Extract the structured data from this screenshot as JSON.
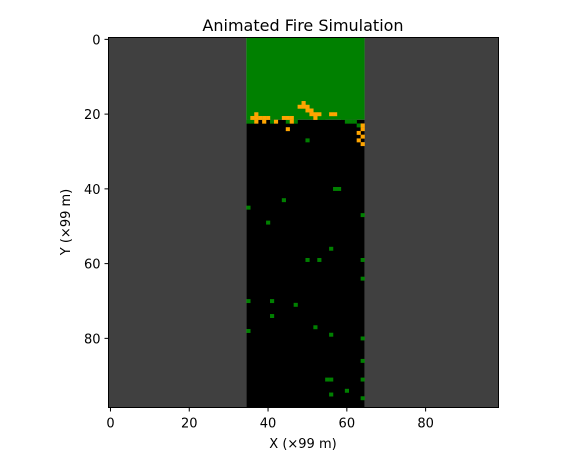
{
  "chart_data": {
    "type": "heatmap",
    "title": "Animated Fire Simulation",
    "xlabel": "X (×99 m)",
    "ylabel": "Y (×99 m)",
    "xlim": [
      0,
      99
    ],
    "ylim": [
      99,
      0
    ],
    "x_ticks": [
      0,
      20,
      40,
      60,
      80
    ],
    "y_ticks": [
      0,
      20,
      40,
      60,
      80
    ],
    "grid": false,
    "colors": {
      "out_of_bounds": "#404040",
      "unburned_fuel": "#008000",
      "burning": "#ffa500",
      "burned": "#000000"
    },
    "regions": [
      {
        "state": "out_of_bounds",
        "x": [
          0,
          35
        ],
        "y": [
          0,
          99
        ]
      },
      {
        "state": "out_of_bounds",
        "x": [
          65,
          99
        ],
        "y": [
          0,
          99
        ]
      },
      {
        "state": "unburned_fuel",
        "x": [
          35,
          65
        ],
        "y": [
          0,
          22
        ]
      },
      {
        "state": "burned",
        "x": [
          35,
          65
        ],
        "y": [
          22,
          99
        ]
      }
    ],
    "cells": [
      {
        "state": "unburned_fuel",
        "x": 35,
        "y": 22
      },
      {
        "state": "unburned_fuel",
        "x": 36,
        "y": 22
      },
      {
        "state": "unburned_fuel",
        "x": 41,
        "y": 22
      },
      {
        "state": "unburned_fuel",
        "x": 45,
        "y": 22
      },
      {
        "state": "unburned_fuel",
        "x": 47,
        "y": 22
      },
      {
        "state": "unburned_fuel",
        "x": 53,
        "y": 21
      },
      {
        "state": "unburned_fuel",
        "x": 54,
        "y": 21
      },
      {
        "state": "unburned_fuel",
        "x": 59,
        "y": 21
      },
      {
        "state": "unburned_fuel",
        "x": 60,
        "y": 22
      },
      {
        "state": "unburned_fuel",
        "x": 61,
        "y": 22
      },
      {
        "state": "unburned_fuel",
        "x": 62,
        "y": 22
      },
      {
        "state": "unburned_fuel",
        "x": 63,
        "y": 23
      },
      {
        "state": "burning",
        "x": 36,
        "y": 21
      },
      {
        "state": "burning",
        "x": 37,
        "y": 20
      },
      {
        "state": "burning",
        "x": 37,
        "y": 21
      },
      {
        "state": "burning",
        "x": 37,
        "y": 22
      },
      {
        "state": "burning",
        "x": 38,
        "y": 21
      },
      {
        "state": "burning",
        "x": 39,
        "y": 21
      },
      {
        "state": "burning",
        "x": 39,
        "y": 22
      },
      {
        "state": "burning",
        "x": 40,
        "y": 21
      },
      {
        "state": "burning",
        "x": 42,
        "y": 22
      },
      {
        "state": "burning",
        "x": 44,
        "y": 21
      },
      {
        "state": "burning",
        "x": 45,
        "y": 21
      },
      {
        "state": "burning",
        "x": 46,
        "y": 21
      },
      {
        "state": "burning",
        "x": 46,
        "y": 22
      },
      {
        "state": "burning",
        "x": 45,
        "y": 24
      },
      {
        "state": "burning",
        "x": 48,
        "y": 18
      },
      {
        "state": "burning",
        "x": 49,
        "y": 17
      },
      {
        "state": "burning",
        "x": 49,
        "y": 18
      },
      {
        "state": "burning",
        "x": 50,
        "y": 18
      },
      {
        "state": "burning",
        "x": 50,
        "y": 19
      },
      {
        "state": "burning",
        "x": 51,
        "y": 19
      },
      {
        "state": "burning",
        "x": 51,
        "y": 20
      },
      {
        "state": "burning",
        "x": 52,
        "y": 20
      },
      {
        "state": "burning",
        "x": 52,
        "y": 21
      },
      {
        "state": "burning",
        "x": 53,
        "y": 20
      },
      {
        "state": "burning",
        "x": 56,
        "y": 20
      },
      {
        "state": "burning",
        "x": 57,
        "y": 20
      },
      {
        "state": "burning",
        "x": 64,
        "y": 23
      },
      {
        "state": "burning",
        "x": 64,
        "y": 24
      },
      {
        "state": "burning",
        "x": 63,
        "y": 25
      },
      {
        "state": "burning",
        "x": 64,
        "y": 26
      },
      {
        "state": "burning",
        "x": 63,
        "y": 27
      },
      {
        "state": "burning",
        "x": 64,
        "y": 28
      },
      {
        "state": "unburned_fuel",
        "x": 50,
        "y": 27
      },
      {
        "state": "unburned_fuel",
        "x": 57,
        "y": 40
      },
      {
        "state": "unburned_fuel",
        "x": 58,
        "y": 40
      },
      {
        "state": "unburned_fuel",
        "x": 44,
        "y": 43
      },
      {
        "state": "unburned_fuel",
        "x": 35,
        "y": 45
      },
      {
        "state": "unburned_fuel",
        "x": 64,
        "y": 47
      },
      {
        "state": "unburned_fuel",
        "x": 40,
        "y": 49
      },
      {
        "state": "unburned_fuel",
        "x": 56,
        "y": 56
      },
      {
        "state": "unburned_fuel",
        "x": 50,
        "y": 59
      },
      {
        "state": "unburned_fuel",
        "x": 53,
        "y": 59
      },
      {
        "state": "unburned_fuel",
        "x": 64,
        "y": 59
      },
      {
        "state": "unburned_fuel",
        "x": 64,
        "y": 64
      },
      {
        "state": "unburned_fuel",
        "x": 35,
        "y": 70
      },
      {
        "state": "unburned_fuel",
        "x": 41,
        "y": 70
      },
      {
        "state": "unburned_fuel",
        "x": 47,
        "y": 71
      },
      {
        "state": "unburned_fuel",
        "x": 41,
        "y": 74
      },
      {
        "state": "unburned_fuel",
        "x": 52,
        "y": 77
      },
      {
        "state": "unburned_fuel",
        "x": 35,
        "y": 78
      },
      {
        "state": "unburned_fuel",
        "x": 56,
        "y": 79
      },
      {
        "state": "unburned_fuel",
        "x": 64,
        "y": 80
      },
      {
        "state": "unburned_fuel",
        "x": 64,
        "y": 86
      },
      {
        "state": "unburned_fuel",
        "x": 55,
        "y": 91
      },
      {
        "state": "unburned_fuel",
        "x": 56,
        "y": 91
      },
      {
        "state": "unburned_fuel",
        "x": 64,
        "y": 91
      },
      {
        "state": "unburned_fuel",
        "x": 60,
        "y": 94
      },
      {
        "state": "unburned_fuel",
        "x": 56,
        "y": 95
      },
      {
        "state": "unburned_fuel",
        "x": 64,
        "y": 96
      }
    ]
  }
}
